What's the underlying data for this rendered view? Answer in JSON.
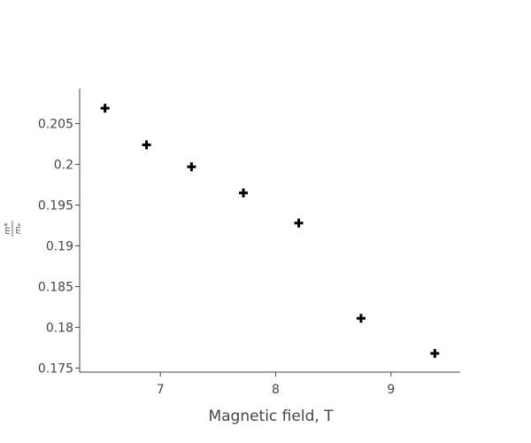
{
  "chart_data": {
    "type": "scatter",
    "title": "",
    "xlabel": "Magnetic field, T",
    "ylabel": "m*/m_e",
    "xlim": [
      6.3,
      9.6
    ],
    "ylim": [
      0.1745,
      0.2093
    ],
    "xticks": [
      7,
      8,
      9
    ],
    "xtick_labels": [
      "7",
      "8",
      "9"
    ],
    "yticks": [
      0.175,
      0.18,
      0.185,
      0.19,
      0.195,
      0.2,
      0.205
    ],
    "ytick_labels": [
      "0.175",
      "0.18",
      "0.185",
      "0.19",
      "0.195",
      "0.2",
      "0.205"
    ],
    "grid": false,
    "marker": "cross",
    "marker_color": "#000000",
    "series": [
      {
        "x": [
          6.52,
          6.88,
          7.27,
          7.72,
          8.2,
          8.74,
          9.38
        ],
        "y": [
          0.2069,
          0.2024,
          0.1997,
          0.1965,
          0.1928,
          0.1811,
          0.1768
        ]
      }
    ]
  }
}
